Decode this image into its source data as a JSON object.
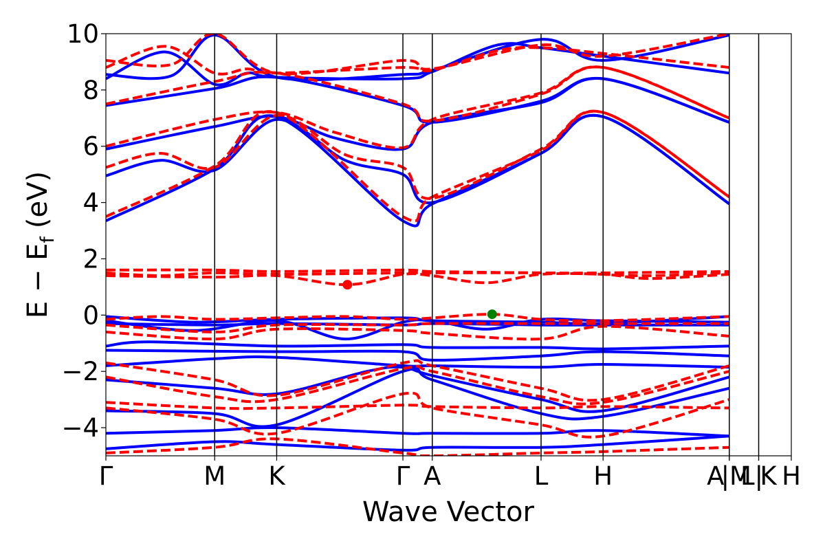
{
  "chart_data": {
    "type": "line",
    "title": "",
    "xlabel": "Wave Vector",
    "ylabel": "E − E",
    "ylabel_subscript": "f",
    "ylabel_unit": "(eV)",
    "ylim": [
      -5,
      10
    ],
    "xlim": [
      0,
      6.3
    ],
    "yticks": [
      -4,
      -2,
      0,
      2,
      4,
      6,
      8,
      10
    ],
    "ytick_labels": [
      "−4",
      "−2",
      "0",
      "2",
      "4",
      "6",
      "8",
      "10"
    ],
    "kpoints": [
      {
        "label": "Γ",
        "x": 0.0
      },
      {
        "label": "M",
        "x": 1.0
      },
      {
        "label": "K",
        "x": 1.57
      },
      {
        "label": "Γ",
        "x": 2.73
      },
      {
        "label": "A",
        "x": 3.0
      },
      {
        "label": "L",
        "x": 4.0
      },
      {
        "label": "H",
        "x": 4.57
      },
      {
        "label": "A",
        "x": 5.73
      },
      {
        "label": "|M",
        "x": 5.73
      },
      {
        "label": "L|",
        "x": 6.0
      },
      {
        "label": "K",
        "x": 6.0
      },
      {
        "label": "H",
        "x": 6.3
      }
    ],
    "grid": false,
    "colors": {
      "series_a": "#0000ff",
      "series_b": "#ff0000",
      "marker_cbm": "#ff0000",
      "marker_vbm": "#008000"
    },
    "markers": [
      {
        "x": 2.22,
        "y": 1.08,
        "color": "#ff0000"
      },
      {
        "x": 3.55,
        "y": 0.03,
        "color": "#008000"
      }
    ],
    "series": [
      {
        "style": "solid",
        "color": "#0000ff",
        "bands": [
          {
            "x": [
              0,
              1,
              1.57,
              2.73,
              3,
              4,
              4.57,
              5.73
            ],
            "y": [
              3.35,
              5.2,
              7.05,
              3.35,
              3.95,
              5.75,
              7.05,
              3.95
            ]
          },
          {
            "x": [
              0,
              0.5,
              1,
              1.57,
              2.2,
              2.73,
              3,
              4,
              4.57,
              5.73
            ],
            "y": [
              4.95,
              5.5,
              5.15,
              6.95,
              5.5,
              5.0,
              4.0,
              5.75,
              7.05,
              3.95
            ]
          },
          {
            "x": [
              0,
              1,
              1.57,
              2.1,
              2.73,
              3,
              4,
              4.57,
              5.73
            ],
            "y": [
              5.9,
              6.7,
              7.05,
              6.3,
              5.9,
              6.85,
              7.55,
              8.4,
              6.85
            ]
          },
          {
            "x": [
              0,
              1,
              1.57,
              2.73,
              3,
              4,
              4.57,
              5.73
            ],
            "y": [
              7.45,
              8.05,
              8.45,
              7.45,
              6.85,
              7.6,
              8.4,
              6.85
            ]
          },
          {
            "x": [
              0,
              0.55,
              1,
              1.3,
              1.57,
              2.73,
              3,
              3.6,
              4,
              4.57,
              5.73
            ],
            "y": [
              8.4,
              9.35,
              8.2,
              8.6,
              8.45,
              8.4,
              8.65,
              9.6,
              9.5,
              9.2,
              8.6
            ]
          },
          {
            "x": [
              0,
              0.6,
              1,
              1.57,
              2.73,
              3,
              4,
              4.57,
              5.73
            ],
            "y": [
              8.55,
              8.5,
              9.95,
              8.45,
              8.55,
              8.7,
              9.8,
              9.05,
              9.95
            ]
          },
          {
            "x": [
              0,
              0.8,
              1.57,
              2.73,
              3,
              4,
              4.57,
              5.73
            ],
            "y": [
              -0.05,
              -0.25,
              -0.15,
              -0.1,
              -0.2,
              -0.25,
              -0.3,
              -0.05
            ]
          },
          {
            "x": [
              0,
              0.8,
              1.57,
              2.2,
              2.73,
              3,
              3.5,
              4,
              4.57,
              5.73
            ],
            "y": [
              -0.2,
              -0.55,
              -0.2,
              -0.85,
              -0.25,
              -0.2,
              -0.5,
              -0.15,
              -0.2,
              -0.25
            ]
          },
          {
            "x": [
              0,
              1,
              1.57,
              2.73,
              3,
              4,
              4.57,
              5.73
            ],
            "y": [
              -0.3,
              -0.35,
              -0.3,
              -0.35,
              -0.3,
              -0.35,
              -0.35,
              -0.35
            ]
          },
          {
            "x": [
              0,
              0.4,
              1.57,
              2.73,
              3,
              4,
              4.57,
              5.73
            ],
            "y": [
              -1.1,
              -0.95,
              -1.1,
              -1.05,
              -1.15,
              -1.15,
              -1.2,
              -1.1
            ]
          },
          {
            "x": [
              0,
              1.57,
              2.73,
              3,
              4,
              4.57,
              5.73
            ],
            "y": [
              -1.25,
              -1.3,
              -1.3,
              -1.6,
              -1.45,
              -1.3,
              -1.45
            ]
          },
          {
            "x": [
              0,
              1,
              1.57,
              2.73,
              3,
              4,
              4.57,
              5.73
            ],
            "y": [
              -1.8,
              -1.55,
              -1.5,
              -1.8,
              -1.8,
              -1.85,
              -1.75,
              -1.85
            ]
          },
          {
            "x": [
              0,
              1,
              1.57,
              2.4,
              2.73,
              3,
              4,
              4.57,
              5.73
            ],
            "y": [
              -2.3,
              -2.6,
              -2.8,
              -2.0,
              -1.85,
              -2.15,
              -3.0,
              -3.4,
              -2.2
            ]
          },
          {
            "x": [
              0,
              1,
              1.57,
              2.73,
              3,
              4,
              4.57,
              5.73
            ],
            "y": [
              -3.4,
              -3.5,
              -3.9,
              -2.0,
              -2.3,
              -3.5,
              -3.6,
              -2.6
            ]
          },
          {
            "x": [
              0,
              1,
              1.57,
              2.73,
              3,
              4,
              4.57,
              5.73
            ],
            "y": [
              -4.2,
              -4.1,
              -4.0,
              -4.2,
              -4.2,
              -4.2,
              -4.1,
              -4.3
            ]
          },
          {
            "x": [
              0,
              1,
              1.57,
              2.73,
              3,
              4,
              4.57,
              5.73
            ],
            "y": [
              -4.75,
              -4.5,
              -4.6,
              -4.8,
              -4.7,
              -4.7,
              -4.6,
              -4.3
            ]
          }
        ]
      },
      {
        "style": "dashed",
        "color": "#ff0000",
        "bands": [
          {
            "x": [
              0,
              1,
              1.57,
              2.73,
              3,
              4,
              4.57,
              5.73
            ],
            "y": [
              3.5,
              5.3,
              7.2,
              3.5,
              4.2,
              5.85,
              7.2,
              4.2
            ]
          },
          {
            "x": [
              0,
              0.5,
              1,
              1.57,
              2.2,
              2.73,
              3,
              4,
              4.57,
              5.73
            ],
            "y": [
              5.25,
              5.75,
              5.25,
              7.1,
              5.7,
              5.25,
              4.15,
              5.9,
              7.2,
              4.2
            ]
          },
          {
            "x": [
              0,
              1,
              1.57,
              2.1,
              2.73,
              3,
              4,
              4.57,
              5.73
            ],
            "y": [
              6.0,
              6.95,
              7.2,
              6.5,
              5.95,
              6.95,
              7.9,
              8.8,
              7.0
            ]
          },
          {
            "x": [
              0,
              1,
              1.57,
              2.73,
              3,
              4,
              4.57,
              5.73
            ],
            "y": [
              7.5,
              8.3,
              8.6,
              7.5,
              6.9,
              7.85,
              8.8,
              7.0
            ]
          },
          {
            "x": [
              0,
              0.55,
              1,
              1.3,
              1.57,
              2.73,
              3,
              3.6,
              4,
              4.57,
              5.73
            ],
            "y": [
              8.8,
              9.55,
              8.6,
              8.75,
              8.6,
              8.8,
              8.7,
              9.4,
              9.5,
              9.3,
              8.8
            ]
          },
          {
            "x": [
              0,
              0.6,
              1,
              1.57,
              2.73,
              3,
              4,
              4.57,
              5.73
            ],
            "y": [
              9.05,
              8.9,
              10.0,
              8.6,
              9.05,
              8.75,
              9.6,
              9.2,
              10.0
            ]
          },
          {
            "x": [
              0,
              1,
              1.57,
              2.73,
              3,
              4,
              4.57,
              5.73
            ],
            "y": [
              1.6,
              1.6,
              1.55,
              1.6,
              1.55,
              1.5,
              1.5,
              1.55
            ]
          },
          {
            "x": [
              0,
              0.5,
              1,
              1.57,
              2.73,
              3,
              4,
              4.57,
              5.0,
              5.73
            ],
            "y": [
              1.5,
              1.4,
              1.5,
              1.45,
              1.5,
              1.5,
              1.5,
              1.45,
              1.4,
              1.5
            ]
          },
          {
            "x": [
              0,
              1,
              1.57,
              2.22,
              2.73,
              3,
              3.5,
              4,
              4.57,
              5.0,
              5.73
            ],
            "y": [
              1.4,
              1.35,
              1.4,
              1.08,
              1.45,
              1.4,
              1.15,
              1.45,
              1.45,
              1.3,
              1.45
            ]
          },
          {
            "x": [
              0,
              0.5,
              1,
              1.57,
              2.2,
              2.73,
              3,
              3.55,
              4,
              4.57,
              5.73
            ],
            "y": [
              -0.15,
              -0.05,
              -0.15,
              -0.1,
              -0.05,
              -0.15,
              -0.1,
              0.03,
              -0.15,
              -0.2,
              -0.05
            ]
          },
          {
            "x": [
              0,
              1,
              1.57,
              2.73,
              3,
              4,
              4.57,
              5.73
            ],
            "y": [
              -0.35,
              -0.6,
              -0.35,
              -0.35,
              -0.3,
              -0.3,
              -0.3,
              -0.3
            ]
          },
          {
            "x": [
              0,
              1,
              1.57,
              2.73,
              3,
              4,
              4.57,
              5.73
            ],
            "y": [
              -0.6,
              -0.85,
              -0.5,
              -0.55,
              -0.65,
              -0.85,
              -0.4,
              -0.75
            ]
          },
          {
            "x": [
              0,
              1,
              1.57,
              2.73,
              3,
              4,
              4.57,
              5.73
            ],
            "y": [
              -1.7,
              -2.3,
              -2.85,
              -1.7,
              -1.8,
              -2.6,
              -3.0,
              -1.8
            ]
          },
          {
            "x": [
              0,
              1,
              1.57,
              2.73,
              3,
              4,
              4.57,
              5.73
            ],
            "y": [
              -2.2,
              -2.9,
              -3.0,
              -1.9,
              -2.0,
              -2.9,
              -3.1,
              -2.0
            ]
          },
          {
            "x": [
              0,
              1,
              1.57,
              2.73,
              3,
              4,
              4.57,
              5.73
            ],
            "y": [
              -3.1,
              -3.3,
              -3.3,
              -3.2,
              -3.25,
              -3.3,
              -3.25,
              -3.3
            ]
          },
          {
            "x": [
              0,
              1,
              1.57,
              2.73,
              3,
              4,
              4.57,
              5.73
            ],
            "y": [
              -3.3,
              -3.7,
              -4.2,
              -2.8,
              -3.3,
              -3.9,
              -4.3,
              -3.0
            ]
          },
          {
            "x": [
              0,
              1,
              1.57,
              2.73,
              3,
              4,
              4.57,
              5.73
            ],
            "y": [
              -4.9,
              -4.7,
              -4.4,
              -4.9,
              -5.0,
              -4.9,
              -4.85,
              -4.7
            ]
          }
        ]
      }
    ]
  }
}
